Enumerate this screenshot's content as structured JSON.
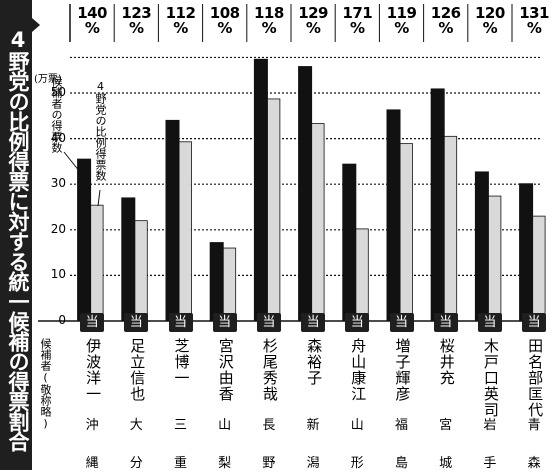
{
  "title": "4野党の比例得票に対する統一候補の得票割合",
  "y_unit": "(万票)",
  "name_header": "候補者(敬称略)",
  "elected_mark": "当",
  "legend": {
    "candidate": "候補者の得票数",
    "opposition": "4野党の比例得票数"
  },
  "colors": {
    "candidate_bar": "#111111",
    "opposition_bar": "#d9d9d9",
    "band": "#1f1f1f"
  },
  "chart_data": {
    "type": "bar",
    "title": "4野党の比例得票に対する統一候補の得票割合",
    "ylabel": "(万票)",
    "ylim": [
      0,
      60
    ],
    "yticks": [
      0,
      10,
      20,
      30,
      40,
      50
    ],
    "grid": true,
    "categories": [
      "伊波洋一",
      "足立信也",
      "芝博一",
      "宮沢由香",
      "杉尾秀哉",
      "森裕子",
      "舟山康江",
      "増子輝彦",
      "桜井充",
      "木戸口英司",
      "田名部匡代"
    ],
    "prefectures": [
      "沖縄",
      "大分",
      "三重",
      "山梨",
      "長野",
      "新潟",
      "山形",
      "福島",
      "宮城",
      "岩手",
      "青森"
    ],
    "percentages": [
      "140%",
      "123%",
      "112%",
      "108%",
      "118%",
      "129%",
      "171%",
      "119%",
      "126%",
      "120%",
      "131%"
    ],
    "series": [
      {
        "name": "候補者の得票数",
        "values": [
          35.6,
          27.1,
          44.1,
          17.3,
          57.5,
          55.9,
          34.5,
          46.4,
          51.0,
          32.8,
          30.2
        ]
      },
      {
        "name": "4野党の比例得票数",
        "values": [
          25.4,
          22.0,
          39.3,
          16.0,
          48.7,
          43.3,
          20.2,
          38.9,
          40.5,
          27.4,
          23.0
        ]
      }
    ]
  }
}
